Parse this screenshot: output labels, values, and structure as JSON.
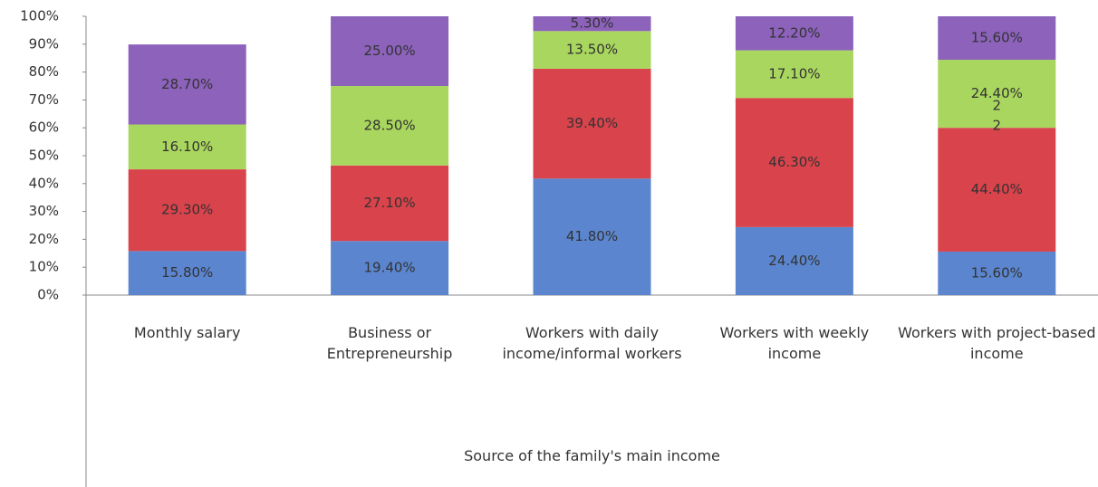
{
  "chart_data": {
    "type": "stacked_bar",
    "categories": [
      "Monthly salary",
      "Business or Entrepreneurship",
      "Workers with daily income/informal workers",
      "Workers with weekly income",
      "Workers with project-based income"
    ],
    "series": [
      {
        "color": "#5b86cf",
        "values": [
          15.8,
          19.4,
          41.8,
          24.4,
          15.6
        ],
        "value_labels": [
          "15.80%",
          "19.40%",
          "41.80%",
          "24.40%",
          "15.60%"
        ]
      },
      {
        "color": "#d9434b",
        "values": [
          29.3,
          27.1,
          39.4,
          46.3,
          44.4
        ],
        "value_labels": [
          "29.30%",
          "27.10%",
          "39.40%",
          "46.30%",
          "44.40%"
        ]
      },
      {
        "color": "#a9d65e",
        "values": [
          16.1,
          28.5,
          13.5,
          17.1,
          24.4
        ],
        "value_labels": [
          "16.10%",
          "28.50%",
          "13.50%",
          "17.10%",
          "24.40%"
        ]
      },
      {
        "color": "#8c62bb",
        "values": [
          28.7,
          25.0,
          5.3,
          12.2,
          15.6
        ],
        "value_labels": [
          "28.70%",
          "25.00%",
          "5.30%",
          "12.20%",
          "15.60%"
        ]
      }
    ],
    "ylim": [
      0,
      100
    ],
    "yticks": [
      {
        "value": 0,
        "label": "0%"
      },
      {
        "value": 10,
        "label": "10%"
      },
      {
        "value": 20,
        "label": "20%"
      },
      {
        "value": 30,
        "label": "30%"
      },
      {
        "value": 40,
        "label": "40%"
      },
      {
        "value": 50,
        "label": "50%"
      },
      {
        "value": 60,
        "label": "60%"
      },
      {
        "value": 70,
        "label": "70%"
      },
      {
        "value": 80,
        "label": "80%"
      },
      {
        "value": 90,
        "label": "90%"
      },
      {
        "value": 100,
        "label": "100%"
      }
    ],
    "xlabel": "Source of the family's main income",
    "annotations": [
      "2",
      "2"
    ]
  }
}
